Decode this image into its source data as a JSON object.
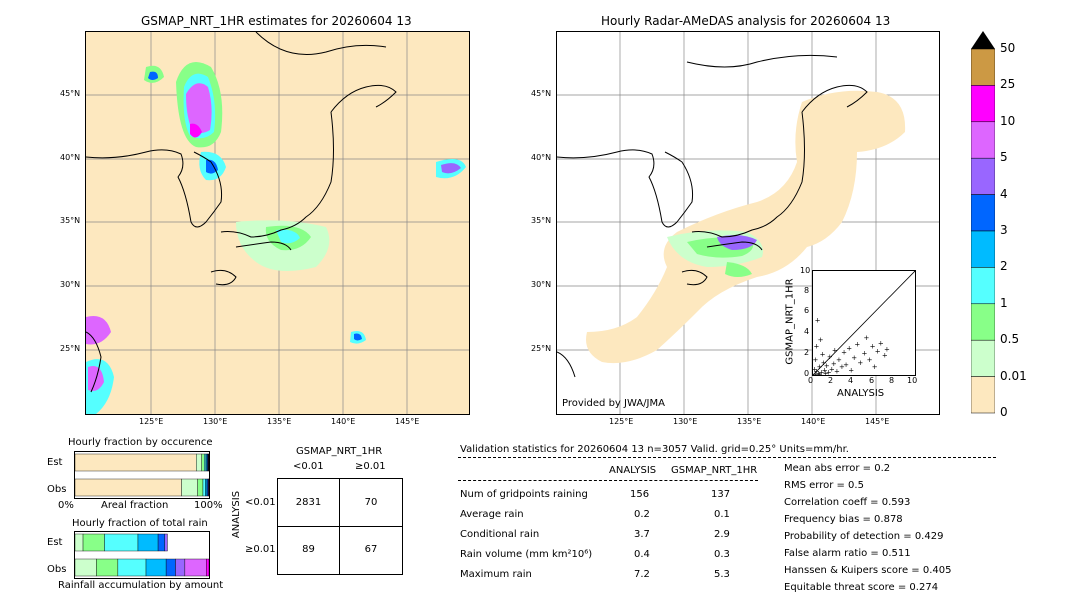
{
  "left_map": {
    "title": "GSMAP_NRT_1HR estimates for 20260604 13",
    "lon_labels": [
      "125°E",
      "130°E",
      "135°E",
      "140°E",
      "145°E"
    ],
    "lat_labels": [
      "45°N",
      "40°N",
      "35°N",
      "30°N",
      "25°N"
    ]
  },
  "right_map": {
    "title": "Hourly Radar-AMeDAS analysis for 20260604 13",
    "lon_labels": [
      "125°E",
      "130°E",
      "135°E",
      "140°E",
      "145°E"
    ],
    "lat_labels": [
      "45°N",
      "40°N",
      "35°N",
      "30°N",
      "25°N"
    ],
    "credit": "Provided by JWA/JMA"
  },
  "colorbar": {
    "labels": [
      "50",
      "25",
      "10",
      "5",
      "4",
      "3",
      "2",
      "1",
      "0.5",
      "0.01",
      "0"
    ],
    "colors": [
      "#cc9944",
      "#ff00ff",
      "#dd66ff",
      "#9966ff",
      "#0066ff",
      "#00bbff",
      "#55ffff",
      "#88ff88",
      "#ccffcc",
      "#fde8bf"
    ]
  },
  "scatter": {
    "xlabel": "ANALYSIS",
    "ylabel": "GSMAP_NRT_1HR",
    "ticks": [
      "0",
      "2",
      "4",
      "6",
      "8",
      "10"
    ]
  },
  "chart_data": [
    {
      "type": "scatter",
      "xlabel": "ANALYSIS",
      "ylabel": "GSMAP_NRT_1HR",
      "xlim": [
        0,
        10
      ],
      "ylim": [
        0,
        10
      ],
      "points": [
        [
          0.2,
          0.1
        ],
        [
          0.3,
          0.4
        ],
        [
          0.5,
          0.2
        ],
        [
          0.6,
          0.8
        ],
        [
          0.8,
          0.3
        ],
        [
          1.0,
          1.2
        ],
        [
          1.1,
          0.5
        ],
        [
          1.3,
          0.9
        ],
        [
          1.5,
          0.3
        ],
        [
          1.6,
          1.8
        ],
        [
          1.8,
          0.6
        ],
        [
          2.0,
          1.1
        ],
        [
          2.1,
          2.4
        ],
        [
          2.3,
          0.4
        ],
        [
          2.5,
          1.5
        ],
        [
          2.8,
          0.8
        ],
        [
          3.0,
          2.2
        ],
        [
          3.2,
          1.0
        ],
        [
          3.5,
          2.6
        ],
        [
          3.7,
          0.5
        ],
        [
          4.0,
          1.7
        ],
        [
          4.3,
          3.0
        ],
        [
          4.6,
          1.2
        ],
        [
          5.0,
          2.1
        ],
        [
          5.2,
          3.6
        ],
        [
          5.5,
          1.5
        ],
        [
          5.8,
          2.8
        ],
        [
          6.0,
          0.8
        ],
        [
          6.3,
          2.3
        ],
        [
          6.6,
          3.1
        ],
        [
          7.0,
          1.9
        ],
        [
          7.2,
          2.5
        ],
        [
          0.4,
          5.3
        ],
        [
          0.3,
          2.8
        ],
        [
          0.7,
          3.4
        ],
        [
          0.1,
          0.6
        ],
        [
          0.2,
          1.5
        ],
        [
          0.6,
          0.1
        ],
        [
          0.9,
          2.0
        ],
        [
          1.2,
          0.2
        ]
      ]
    },
    {
      "type": "bar",
      "title": "Hourly fraction by occurence",
      "categories": [
        "Est",
        "Obs"
      ],
      "xlabel": "Areal fraction",
      "x_tick_labels": [
        "0%",
        "100%"
      ],
      "series": [
        {
          "color": "#fde8bf",
          "values": [
            0.905,
            0.795
          ]
        },
        {
          "color": "#ccffcc",
          "values": [
            0.04,
            0.12
          ]
        },
        {
          "color": "#88ff88",
          "values": [
            0.02,
            0.04
          ]
        },
        {
          "color": "#55ffff",
          "values": [
            0.012,
            0.018
          ]
        },
        {
          "color": "#00bbff",
          "values": [
            0.008,
            0.012
          ]
        },
        {
          "color": "#0066ff",
          "values": [
            0.006,
            0.008
          ]
        },
        {
          "color": "#9966ff",
          "values": [
            0.004,
            0.004
          ]
        },
        {
          "color": "#dd66ff",
          "values": [
            0.003,
            0.002
          ]
        },
        {
          "color": "#ff00ff",
          "values": [
            0.002,
            0.001
          ]
        }
      ]
    },
    {
      "type": "bar",
      "title": "Hourly fraction of total rain",
      "categories": [
        "Est",
        "Obs"
      ],
      "xlabel": "Rainfall accumulation by amount",
      "series": [
        {
          "color": "#ccffcc",
          "values": [
            0.06,
            0.16
          ]
        },
        {
          "color": "#88ff88",
          "values": [
            0.16,
            0.16
          ]
        },
        {
          "color": "#55ffff",
          "values": [
            0.25,
            0.21
          ]
        },
        {
          "color": "#00bbff",
          "values": [
            0.15,
            0.15
          ]
        },
        {
          "color": "#0066ff",
          "values": [
            0.05,
            0.07
          ]
        },
        {
          "color": "#9966ff",
          "values": [
            0.02,
            0.07
          ]
        },
        {
          "color": "#dd66ff",
          "values": [
            0.0,
            0.16
          ]
        },
        {
          "color": "#ff00ff",
          "values": [
            0.0,
            0.02
          ]
        }
      ]
    },
    {
      "type": "table",
      "title": "GSMAP_NRT_1HR",
      "columns": [
        "<0.01",
        "≥0.01"
      ],
      "row_axis_label": "ANALYSIS",
      "rows": [
        {
          "label": "<0.01",
          "values": [
            2831,
            70
          ]
        },
        {
          "label": "≥0.01",
          "values": [
            89,
            67
          ]
        }
      ]
    }
  ],
  "contingency": {
    "header": "GSMAP_NRT_1HR",
    "col1": "<0.01",
    "col2": "≥0.01",
    "axis": "ANALYSIS",
    "row1": "<0.01",
    "row2": "≥0.01",
    "c11": "2831",
    "c12": "70",
    "c21": "89",
    "c22": "67"
  },
  "occurrence": {
    "title": "Hourly fraction by occurence",
    "est": "Est",
    "obs": "Obs",
    "xlabel": "Areal fraction",
    "x0": "0%",
    "x1": "100%"
  },
  "totalrain": {
    "title": "Hourly fraction of total rain",
    "est": "Est",
    "obs": "Obs",
    "xlabel": "Rainfall accumulation by amount"
  },
  "validation": {
    "header": "Validation statistics for 20260604 13  n=3057 Valid. grid=0.25°  Units=mm/hr.",
    "col_analysis": "ANALYSIS",
    "col_gsmap": "GSMAP_NRT_1HR",
    "rows": [
      {
        "label": "Num of gridpoints raining",
        "a": "156",
        "g": "137"
      },
      {
        "label": "Average rain",
        "a": "0.2",
        "g": "0.1"
      },
      {
        "label": "Conditional rain",
        "a": "3.7",
        "g": "2.9"
      },
      {
        "label": "Rain volume (mm km²10⁶)",
        "a": "0.4",
        "g": "0.3"
      },
      {
        "label": "Maximum rain",
        "a": "7.2",
        "g": "5.3"
      }
    ],
    "scores": [
      "Mean abs error =    0.2",
      "RMS error =    0.5",
      "Correlation coeff =  0.593",
      "Frequency bias =  0.878",
      "Probability of detection =  0.429",
      "False alarm ratio =  0.511",
      "Hanssen & Kuipers score =  0.405",
      "Equitable threat score =  0.274"
    ]
  }
}
